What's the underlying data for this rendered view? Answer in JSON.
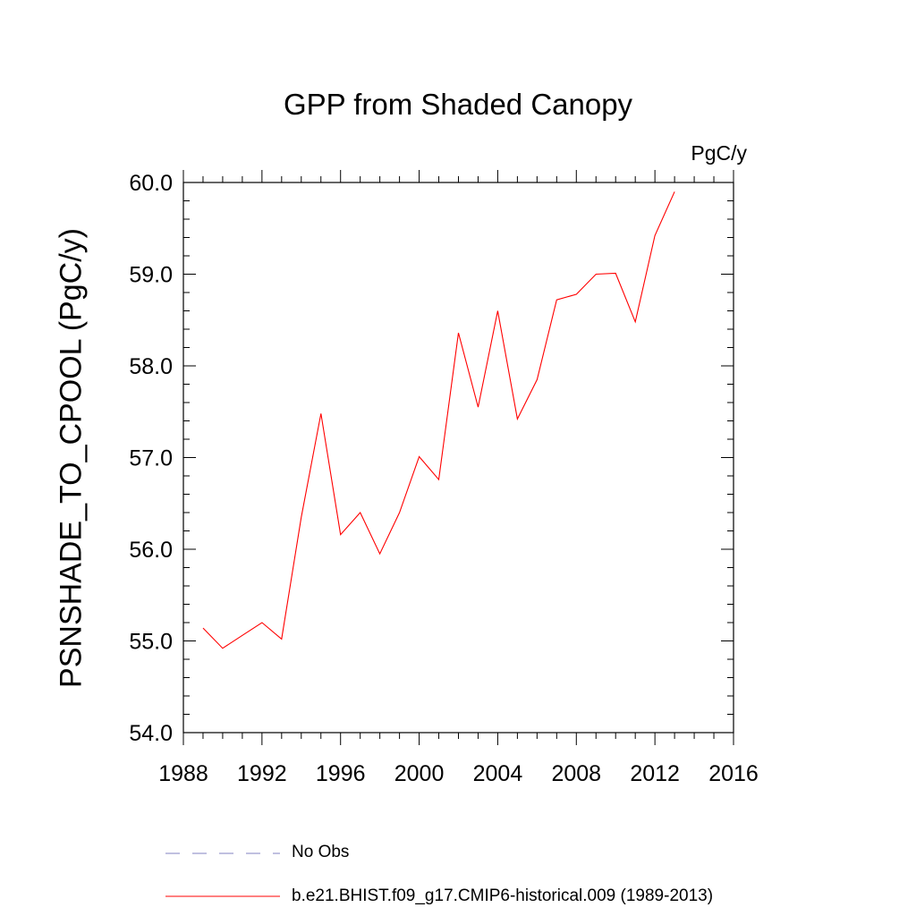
{
  "chart_data": {
    "type": "line",
    "title": "GPP from Shaded Canopy",
    "units": "PgC/y",
    "ylabel": "PSNSHADE_TO_CPOOL  (PgC/y)",
    "xlabel": "",
    "xlim": [
      1988,
      2016
    ],
    "ylim": [
      54.0,
      60.0
    ],
    "xticks": [
      "1988",
      "1992",
      "1996",
      "2000",
      "2004",
      "2008",
      "2012",
      "2016"
    ],
    "yticks": [
      "54.0",
      "55.0",
      "56.0",
      "57.0",
      "58.0",
      "59.0",
      "60.0"
    ],
    "series": [
      {
        "name": "b.e21.BHIST.f09_g17.CMIP6-historical.009 (1989-2013)",
        "color": "#ff0000",
        "x": [
          1989,
          1990,
          1991,
          1992,
          1993,
          1994,
          1995,
          1996,
          1997,
          1998,
          1999,
          2000,
          2001,
          2002,
          2003,
          2004,
          2005,
          2006,
          2007,
          2008,
          2009,
          2010,
          2011,
          2012,
          2013
        ],
        "y": [
          55.14,
          54.92,
          55.06,
          55.2,
          55.02,
          56.35,
          57.48,
          56.16,
          56.4,
          55.95,
          56.4,
          57.01,
          56.76,
          58.36,
          57.55,
          58.6,
          57.42,
          57.85,
          58.72,
          58.78,
          59.0,
          59.01,
          58.48,
          59.42,
          59.9
        ]
      }
    ],
    "legend": [
      {
        "label": "No Obs",
        "style": "dashed",
        "color": "#8080c0"
      },
      {
        "label": "b.e21.BHIST.f09_g17.CMIP6-historical.009 (1989-2013)",
        "style": "solid",
        "color": "#ff0000"
      }
    ]
  }
}
